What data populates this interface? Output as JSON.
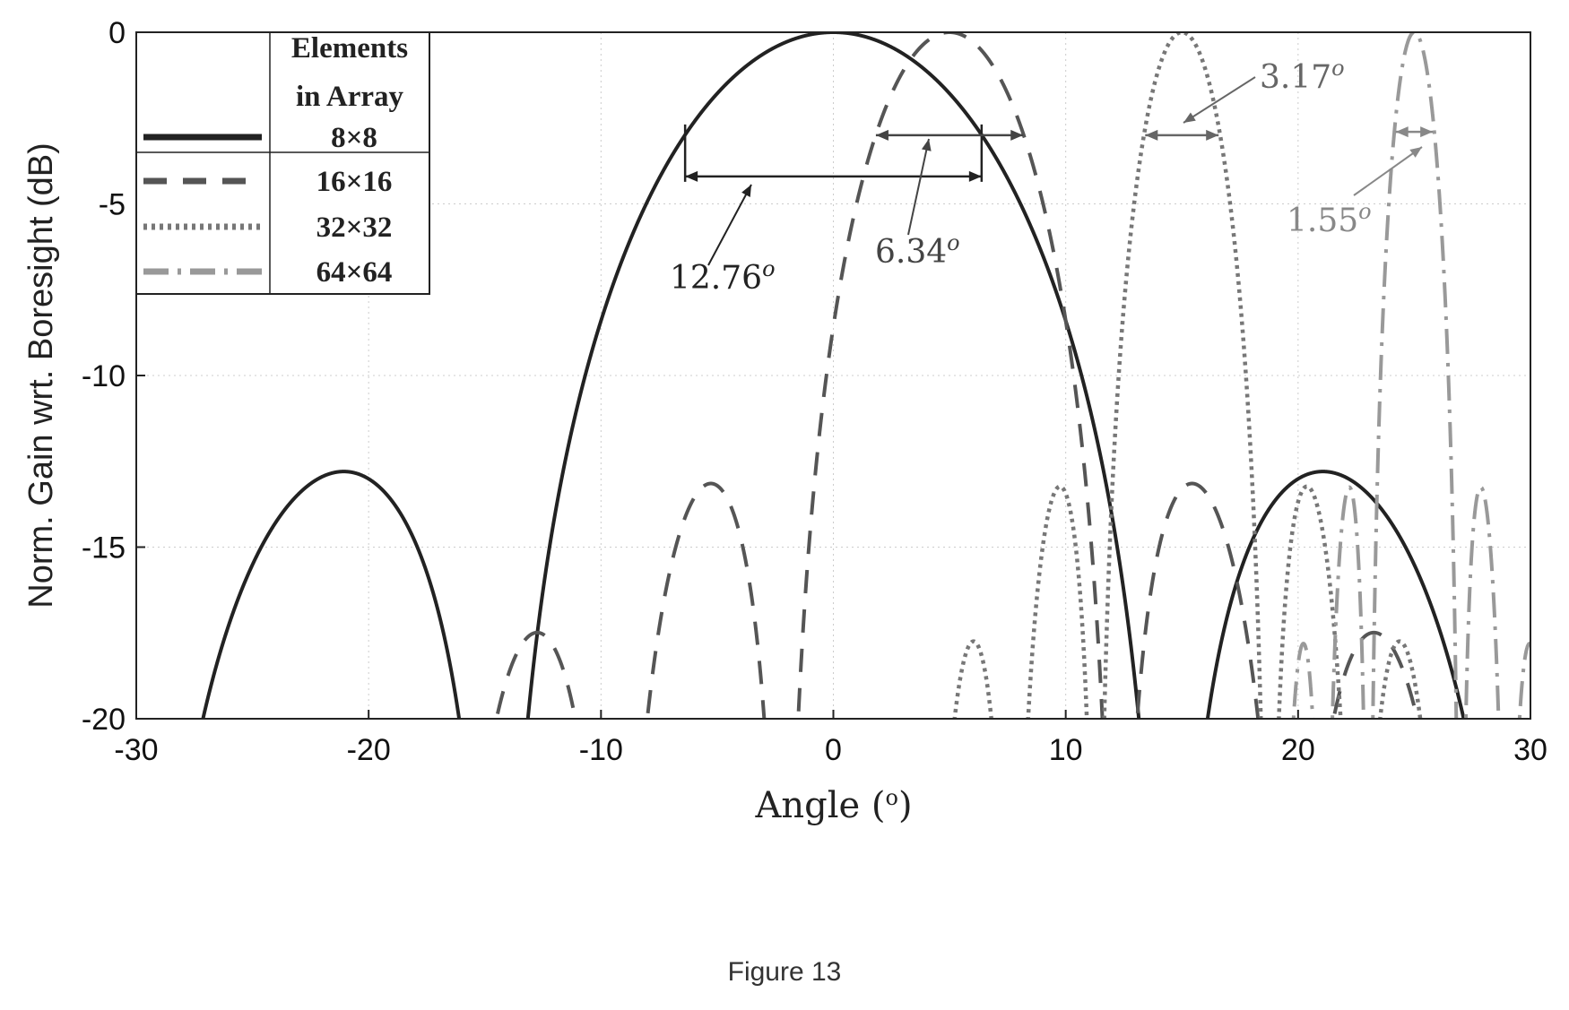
{
  "caption": "Figure 13",
  "chart_data": {
    "type": "line",
    "xlabel": "Angle (",
    "xlabel_sup": "o",
    "xlabel_close": ")",
    "ylabel": "Norm. Gain wrt. Boresight (dB)",
    "xlim": [
      -30,
      30
    ],
    "ylim": [
      -20,
      0
    ],
    "xticks": [
      -30,
      -20,
      -10,
      0,
      10,
      20,
      30
    ],
    "yticks": [
      0,
      -5,
      -10,
      -15,
      -20
    ],
    "xtick_labels": [
      "-30",
      "-20",
      "-10",
      "0",
      "10",
      "20",
      "30"
    ],
    "ytick_labels": [
      "0",
      "-5",
      "-10",
      "-15",
      "-20"
    ],
    "grid": true,
    "legend": {
      "position": "top-left",
      "header_line1": "Elements",
      "header_line2": "in Array",
      "entries": [
        "8×8",
        "16×16",
        "32×32",
        "64×64"
      ]
    },
    "series": [
      {
        "name": "8×8",
        "N": 8,
        "steer_deg": 0,
        "style": "solid",
        "color": "#222222"
      },
      {
        "name": "16×16",
        "N": 16,
        "steer_deg": 5,
        "style": "dashed",
        "color": "#555555"
      },
      {
        "name": "32×32",
        "N": 32,
        "steer_deg": 15,
        "style": "dotted",
        "color": "#777777"
      },
      {
        "name": "64×64",
        "N": 64,
        "steer_deg": 25,
        "style": "dashdot",
        "color": "#999999"
      }
    ],
    "annotations": [
      {
        "label": "12.76",
        "sup": "o",
        "bracket": [
          -6.38,
          6.38
        ],
        "level": -4.2,
        "color": "#222222"
      },
      {
        "label": "6.34",
        "sup": "o",
        "bracket": [
          1.83,
          8.17
        ],
        "level": -3.0,
        "color": "#444444"
      },
      {
        "label": "3.17",
        "sup": "o",
        "bracket": [
          13.42,
          16.58
        ],
        "level": -3.0,
        "color": "#666666"
      },
      {
        "label": "1.55",
        "sup": "o",
        "bracket": [
          24.2,
          25.8
        ],
        "level": -2.9,
        "color": "#888888"
      }
    ]
  }
}
